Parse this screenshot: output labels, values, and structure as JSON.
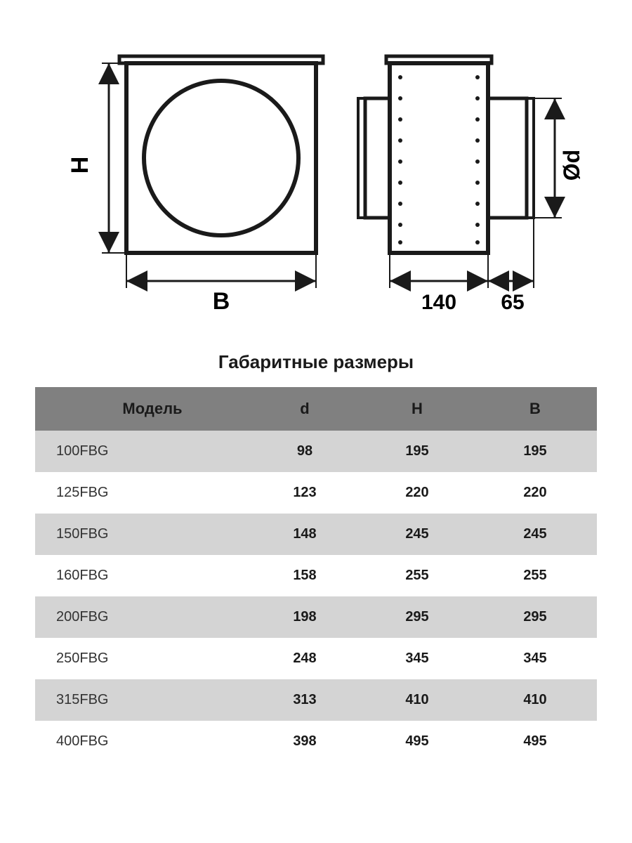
{
  "diagram": {
    "label_H": "H",
    "label_B": "B",
    "label_d": "Ød",
    "dim_140": "140",
    "dim_65": "65",
    "stroke": "#1a1a1a",
    "stroke_heavy": 6,
    "stroke_light": 2,
    "font_size_dim": 30,
    "font_size_label": 34
  },
  "table": {
    "title": "Габаритные размеры",
    "columns": [
      "Модель",
      "d",
      "H",
      "B"
    ],
    "rows": [
      [
        "100FBG",
        "98",
        "195",
        "195"
      ],
      [
        "125FBG",
        "123",
        "220",
        "220"
      ],
      [
        "150FBG",
        "148",
        "245",
        "245"
      ],
      [
        "160FBG",
        "158",
        "255",
        "255"
      ],
      [
        "200FBG",
        "198",
        "295",
        "295"
      ],
      [
        "250FBG",
        "248",
        "345",
        "345"
      ],
      [
        "315FBG",
        "313",
        "410",
        "410"
      ],
      [
        "400FBG",
        "398",
        "495",
        "495"
      ]
    ],
    "header_bg": "#808080",
    "row_alt_bg": "#d4d4d4",
    "row_bg": "#ffffff",
    "col_widths_pct": [
      38,
      20,
      20,
      22
    ]
  }
}
